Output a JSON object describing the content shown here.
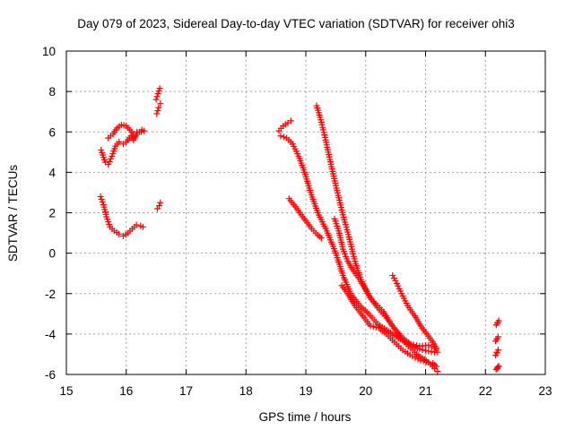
{
  "chart_data": {
    "type": "scatter",
    "title": "Day 079 of 2023, Sidereal Day-to-day VTEC variation (SDTVAR) for receiver ohi3",
    "xlabel": "GPS time / hours",
    "ylabel": "SDTVAR / TECUs",
    "xlim": [
      15,
      23
    ],
    "ylim": [
      -6,
      10
    ],
    "xticks": [
      "15",
      "16",
      "17",
      "18",
      "19",
      "20",
      "21",
      "22",
      "23"
    ],
    "yticks": [
      "-6",
      "-4",
      "-2",
      "0",
      "2",
      "4",
      "6",
      "8",
      "10"
    ],
    "grid": true,
    "marker": "+",
    "color": "#ff0000",
    "series": [
      {
        "name": "arc-a-upper",
        "points": [
          [
            15.58,
            5.1
          ],
          [
            15.65,
            4.5
          ],
          [
            15.7,
            4.4
          ],
          [
            15.76,
            4.8
          ],
          [
            15.82,
            5.3
          ],
          [
            15.88,
            5.5
          ],
          [
            15.95,
            5.4
          ],
          [
            16.0,
            5.5
          ],
          [
            16.08,
            5.8
          ],
          [
            16.12,
            5.6
          ],
          [
            16.18,
            5.9
          ],
          [
            16.26,
            6.1
          ]
        ]
      },
      {
        "name": "arc-a-loop",
        "points": [
          [
            15.7,
            5.7
          ],
          [
            15.78,
            5.9
          ],
          [
            15.85,
            6.2
          ],
          [
            15.92,
            6.35
          ],
          [
            16.0,
            6.3
          ],
          [
            16.06,
            6.1
          ],
          [
            16.12,
            5.9
          ],
          [
            16.18,
            6.0
          ],
          [
            16.25,
            6.0
          ],
          [
            16.3,
            6.05
          ]
        ]
      },
      {
        "name": "arc-b",
        "points": [
          [
            15.57,
            2.8
          ],
          [
            15.62,
            2.4
          ],
          [
            15.67,
            1.8
          ],
          [
            15.73,
            1.3
          ],
          [
            15.8,
            1.1
          ],
          [
            15.88,
            0.95
          ],
          [
            15.95,
            0.85
          ],
          [
            16.03,
            1.0
          ],
          [
            16.1,
            1.2
          ],
          [
            16.17,
            1.4
          ],
          [
            16.24,
            1.35
          ],
          [
            16.28,
            1.3
          ]
        ]
      },
      {
        "name": "arc-c-high",
        "points": [
          [
            16.5,
            7.6
          ],
          [
            16.53,
            7.9
          ],
          [
            16.56,
            8.15
          ]
        ]
      },
      {
        "name": "arc-c-mid",
        "points": [
          [
            16.51,
            6.9
          ],
          [
            16.54,
            7.2
          ],
          [
            16.57,
            7.4
          ]
        ]
      },
      {
        "name": "arc-c-low",
        "points": [
          [
            16.52,
            2.2
          ],
          [
            16.55,
            2.35
          ],
          [
            16.57,
            2.5
          ]
        ]
      },
      {
        "name": "arc-d-start",
        "points": [
          [
            18.55,
            6.05
          ],
          [
            18.62,
            6.3
          ],
          [
            18.7,
            6.45
          ],
          [
            18.75,
            6.55
          ]
        ]
      },
      {
        "name": "arc-d",
        "points": [
          [
            18.58,
            5.8
          ],
          [
            18.68,
            5.7
          ],
          [
            18.78,
            5.4
          ],
          [
            18.88,
            4.8
          ],
          [
            18.98,
            4.0
          ],
          [
            19.08,
            3.0
          ],
          [
            19.2,
            2.0
          ],
          [
            19.35,
            1.1
          ],
          [
            19.5,
            0.0
          ],
          [
            19.62,
            -1.1
          ],
          [
            19.75,
            -2.0
          ],
          [
            19.9,
            -2.6
          ],
          [
            20.05,
            -3.0
          ],
          [
            20.2,
            -3.5
          ],
          [
            20.35,
            -3.8
          ],
          [
            20.55,
            -4.2
          ],
          [
            20.72,
            -4.5
          ],
          [
            20.9,
            -4.75
          ],
          [
            21.05,
            -4.85
          ],
          [
            21.15,
            -4.9
          ]
        ]
      },
      {
        "name": "arc-e",
        "points": [
          [
            19.18,
            7.3
          ],
          [
            19.25,
            6.6
          ],
          [
            19.33,
            5.6
          ],
          [
            19.42,
            4.4
          ],
          [
            19.52,
            3.1
          ],
          [
            19.62,
            1.9
          ],
          [
            19.72,
            0.8
          ],
          [
            19.82,
            -0.4
          ],
          [
            19.92,
            -1.3
          ],
          [
            20.05,
            -2.1
          ],
          [
            20.2,
            -2.7
          ],
          [
            20.35,
            -3.2
          ],
          [
            20.5,
            -3.8
          ],
          [
            20.62,
            -4.2
          ],
          [
            20.75,
            -4.5
          ],
          [
            20.9,
            -4.6
          ],
          [
            21.05,
            -4.55
          ],
          [
            21.15,
            -4.7
          ],
          [
            21.2,
            -4.9
          ]
        ]
      },
      {
        "name": "arc-f",
        "points": [
          [
            18.72,
            2.7
          ],
          [
            18.8,
            2.4
          ],
          [
            18.9,
            2.0
          ],
          [
            19.0,
            1.6
          ],
          [
            19.1,
            1.2
          ],
          [
            19.2,
            0.9
          ],
          [
            19.26,
            0.75
          ]
        ]
      },
      {
        "name": "arc-g",
        "points": [
          [
            19.48,
            1.7
          ],
          [
            19.55,
            1.1
          ],
          [
            19.62,
            0.2
          ],
          [
            19.7,
            -0.4
          ],
          [
            19.8,
            -0.9
          ],
          [
            19.9,
            -1.3
          ],
          [
            20.0,
            -1.8
          ],
          [
            20.1,
            -2.3
          ],
          [
            20.2,
            -2.6
          ],
          [
            20.3,
            -2.9
          ],
          [
            20.4,
            -3.4
          ],
          [
            20.5,
            -3.8
          ],
          [
            20.62,
            -4.3
          ],
          [
            20.75,
            -4.7
          ],
          [
            20.85,
            -5.0
          ],
          [
            20.95,
            -5.2
          ],
          [
            21.05,
            -5.4
          ],
          [
            21.12,
            -5.45
          ],
          [
            21.18,
            -5.6
          ]
        ]
      },
      {
        "name": "arc-h",
        "points": [
          [
            19.6,
            -1.6
          ],
          [
            19.7,
            -2.0
          ],
          [
            19.82,
            -2.6
          ],
          [
            19.95,
            -3.1
          ],
          [
            20.08,
            -3.6
          ],
          [
            20.22,
            -3.7
          ],
          [
            20.35,
            -4.0
          ],
          [
            20.48,
            -4.4
          ],
          [
            20.62,
            -4.8
          ],
          [
            20.78,
            -5.1
          ],
          [
            20.92,
            -5.3
          ],
          [
            21.05,
            -5.4
          ],
          [
            21.15,
            -5.7
          ],
          [
            21.2,
            -5.85
          ]
        ]
      },
      {
        "name": "arc-i",
        "points": [
          [
            20.45,
            -1.1
          ],
          [
            20.52,
            -1.5
          ],
          [
            20.6,
            -2.0
          ],
          [
            20.7,
            -2.6
          ],
          [
            20.82,
            -3.1
          ],
          [
            20.92,
            -3.6
          ],
          [
            21.02,
            -4.0
          ],
          [
            21.12,
            -4.4
          ],
          [
            21.18,
            -4.7
          ]
        ]
      },
      {
        "name": "arc-j",
        "points": [
          [
            22.18,
            -3.55
          ],
          [
            22.2,
            -3.45
          ],
          [
            22.17,
            -4.35
          ],
          [
            22.19,
            -4.25
          ],
          [
            22.17,
            -5.05
          ],
          [
            22.19,
            -4.9
          ],
          [
            22.18,
            -5.75
          ],
          [
            22.2,
            -5.7
          ]
        ]
      }
    ]
  }
}
